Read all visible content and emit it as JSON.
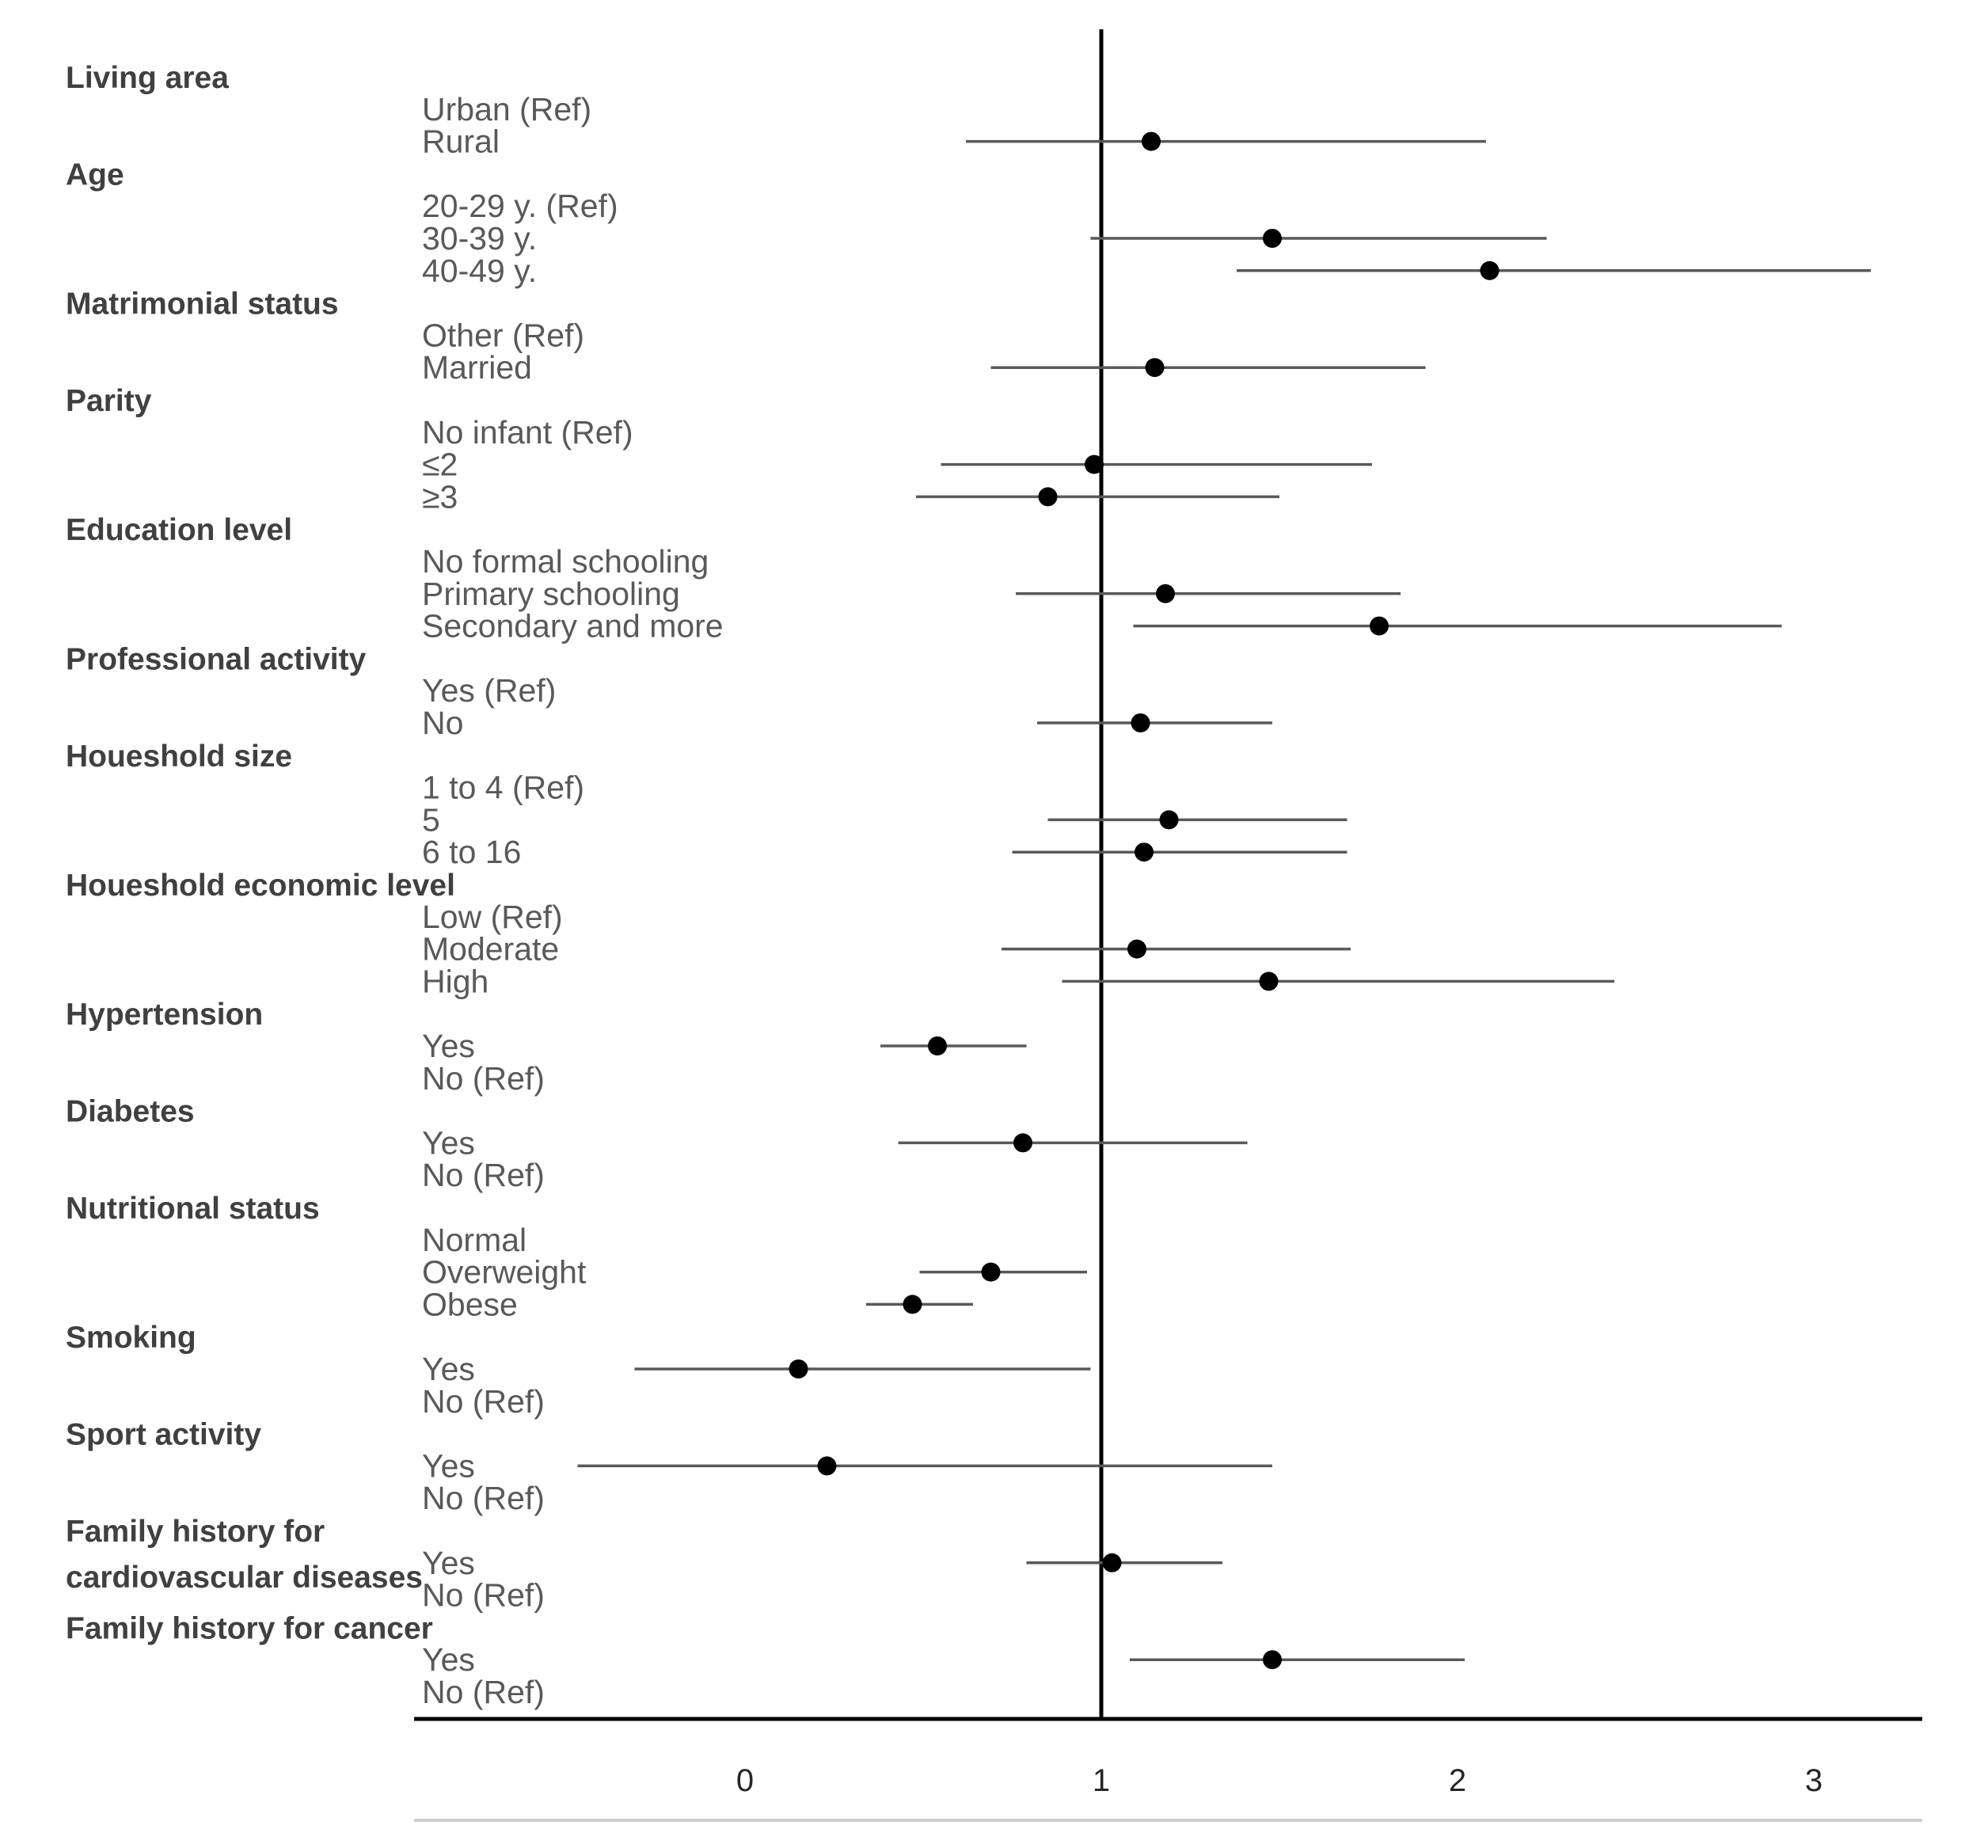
{
  "chart_data": {
    "type": "forest",
    "title": "",
    "xlabel": "",
    "ylabel": "",
    "x_ticks": [
      0,
      1,
      2,
      3
    ],
    "xlim": [
      -0.92,
      3.3
    ],
    "reference_line": 1,
    "groups": [
      {
        "label": "Living area",
        "rows": [
          {
            "label": "Urban (Ref)",
            "ref": true
          },
          {
            "label": "Rural",
            "or": 1.14,
            "lo": 0.62,
            "hi": 2.08
          }
        ]
      },
      {
        "label": "Age",
        "rows": [
          {
            "label": "20-29 y. (Ref)",
            "ref": true
          },
          {
            "label": "30-39 y.",
            "or": 1.48,
            "lo": 0.97,
            "hi": 2.25
          },
          {
            "label": "40-49 y.",
            "or": 2.09,
            "lo": 1.38,
            "hi": 3.16
          }
        ]
      },
      {
        "label": "Matrimonial status",
        "rows": [
          {
            "label": "Other (Ref)",
            "ref": true
          },
          {
            "label": "Married",
            "or": 1.15,
            "lo": 0.69,
            "hi": 1.91
          }
        ]
      },
      {
        "label": "Parity",
        "rows": [
          {
            "label": "No infant (Ref)",
            "ref": true
          },
          {
            "label": "≤2",
            "or": 0.98,
            "lo": 0.55,
            "hi": 1.76
          },
          {
            "label": "≥3",
            "or": 0.85,
            "lo": 0.48,
            "hi": 1.5
          }
        ]
      },
      {
        "label": "Education level",
        "rows": [
          {
            "label": "No formal schooling",
            "ref": true
          },
          {
            "label": "Primary schooling",
            "or": 1.18,
            "lo": 0.76,
            "hi": 1.84
          },
          {
            "label": "Secondary and more",
            "or": 1.78,
            "lo": 1.09,
            "hi": 2.91
          }
        ]
      },
      {
        "label": "Professional activity",
        "rows": [
          {
            "label": "Yes (Ref)",
            "ref": true
          },
          {
            "label": "No",
            "or": 1.11,
            "lo": 0.82,
            "hi": 1.48
          }
        ]
      },
      {
        "label": "Houeshold size",
        "rows": [
          {
            "label": "1 to 4 (Ref)",
            "ref": true
          },
          {
            "label": "5",
            "or": 1.19,
            "lo": 0.85,
            "hi": 1.69
          },
          {
            "label": "6 to 16",
            "or": 1.12,
            "lo": 0.75,
            "hi": 1.69
          }
        ]
      },
      {
        "label": "Houeshold economic level",
        "rows": [
          {
            "label": "Low (Ref)",
            "ref": true
          },
          {
            "label": "Moderate",
            "or": 1.1,
            "lo": 0.72,
            "hi": 1.7
          },
          {
            "label": "High",
            "or": 1.47,
            "lo": 0.89,
            "hi": 2.44
          }
        ]
      },
      {
        "label": "Hypertension",
        "rows": [
          {
            "label": "Yes",
            "or": 0.54,
            "lo": 0.38,
            "hi": 0.79
          },
          {
            "label": "No (Ref)",
            "ref": true
          }
        ]
      },
      {
        "label": "Diabetes",
        "rows": [
          {
            "label": "Yes",
            "or": 0.78,
            "lo": 0.43,
            "hi": 1.41
          },
          {
            "label": "No (Ref)",
            "ref": true
          }
        ]
      },
      {
        "label": "Nutritional status",
        "rows": [
          {
            "label": "Normal",
            "ref": true
          },
          {
            "label": "Overweight",
            "or": 0.69,
            "lo": 0.49,
            "hi": 0.96
          },
          {
            "label": "Obese",
            "or": 0.47,
            "lo": 0.34,
            "hi": 0.64
          }
        ]
      },
      {
        "label": "Smoking",
        "rows": [
          {
            "label": "Yes",
            "or": 0.15,
            "lo": -0.31,
            "hi": 0.97
          },
          {
            "label": "No (Ref)",
            "ref": true
          }
        ]
      },
      {
        "label": "Sport activity",
        "rows": [
          {
            "label": "Yes",
            "or": 0.23,
            "lo": -0.47,
            "hi": 1.48
          },
          {
            "label": "No (Ref)",
            "ref": true
          }
        ]
      },
      {
        "label": "Family history for cardiovascular diseases",
        "rows": [
          {
            "label": "Yes",
            "or": 1.03,
            "lo": 0.79,
            "hi": 1.34
          },
          {
            "label": "No (Ref)",
            "ref": true
          }
        ]
      },
      {
        "label": "Family history for cancer",
        "rows": [
          {
            "label": "Yes",
            "or": 1.48,
            "lo": 1.08,
            "hi": 2.02
          },
          {
            "label": "No (Ref)",
            "ref": true
          }
        ]
      }
    ]
  }
}
